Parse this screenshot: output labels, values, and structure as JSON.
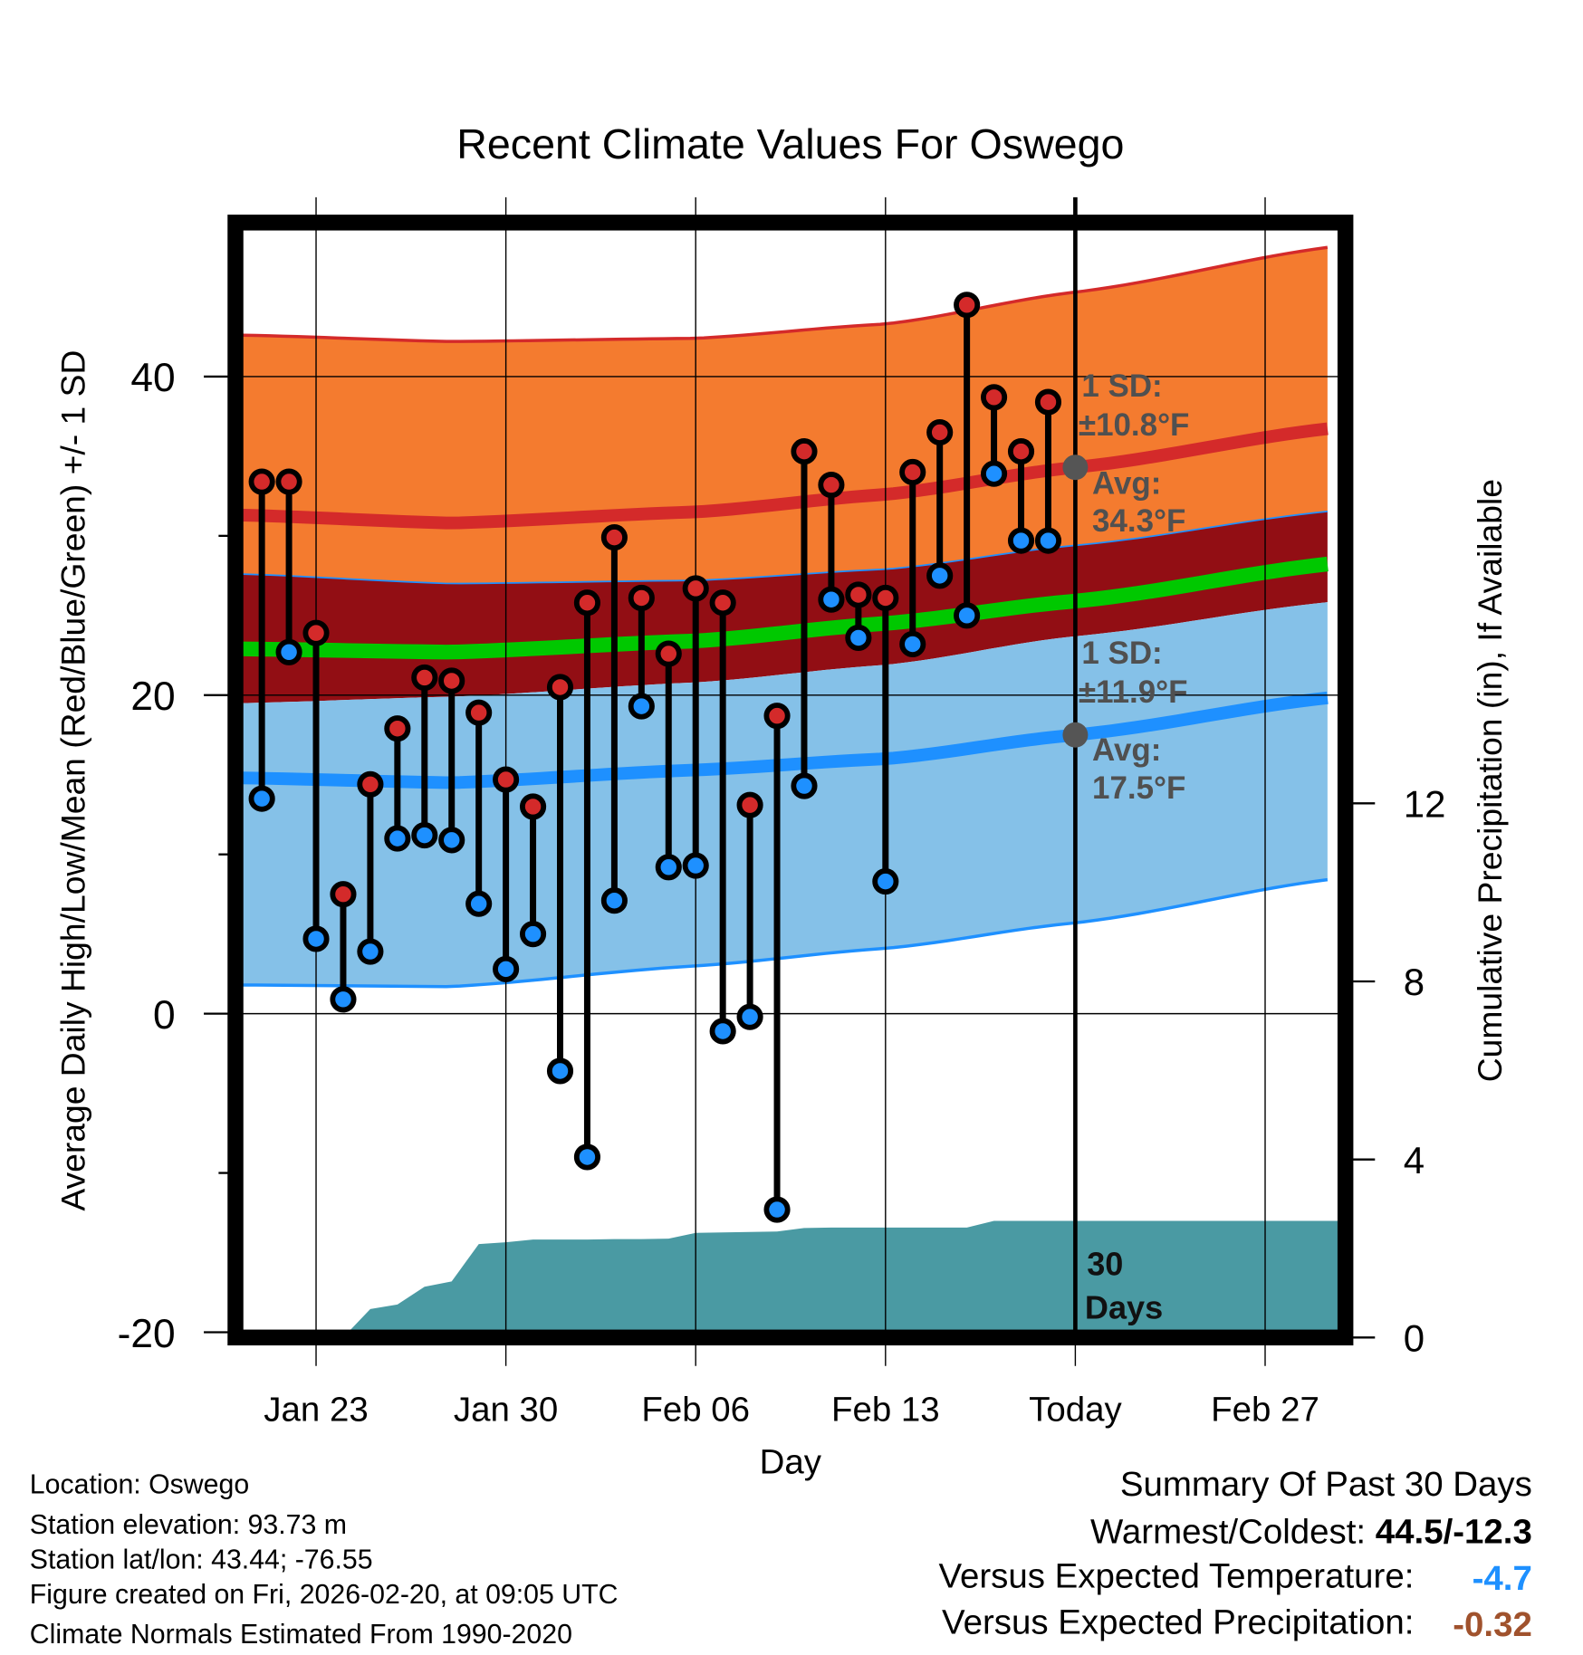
{
  "chart_data": {
    "type": "line",
    "title": "Recent Climate Values For Oswego",
    "xlabel": "Day",
    "ylabel": "Average Daily High/Low/Mean (Red/Blue/Green) +/- 1 SD",
    "ylabel_right": "Cumulative Precipitation (in), If Available",
    "ylim": [
      -20,
      50
    ],
    "ylim_right": [
      0,
      24.9
    ],
    "yticks": [
      "40",
      "20",
      "0",
      "-20"
    ],
    "yticks_right": [
      "12",
      "8",
      "4",
      "0"
    ],
    "xtick_labels": [
      "Jan 23",
      "Jan 30",
      "Feb 06",
      "Feb 13",
      "Today",
      "Feb 27"
    ],
    "xtick_days": [
      2,
      9,
      16,
      23,
      30,
      37
    ],
    "day_labels_note": "day 0 = Jan 21",
    "days": [
      0,
      1,
      2,
      3,
      4,
      5,
      6,
      7,
      8,
      9,
      10,
      11,
      12,
      13,
      14,
      15,
      16,
      17,
      18,
      19,
      20,
      21,
      22,
      23,
      24,
      25,
      26,
      27,
      28,
      29
    ],
    "series": [
      {
        "name": "High",
        "color": "#d42a2a",
        "values": [
          33.4,
          33.4,
          23.9,
          7.5,
          14.4,
          17.9,
          21.1,
          20.9,
          18.9,
          14.7,
          13.0,
          20.5,
          25.8,
          29.9,
          26.1,
          22.6,
          26.7,
          25.8,
          13.1,
          18.7,
          35.3,
          33.2,
          26.3,
          26.1,
          34.0,
          36.5,
          44.5,
          38.7,
          35.3,
          38.4
        ]
      },
      {
        "name": "Low",
        "color": "#1e90ff",
        "values": [
          13.5,
          22.7,
          4.7,
          0.9,
          3.9,
          11.0,
          11.2,
          10.9,
          6.9,
          2.8,
          5.0,
          -3.6,
          -9.0,
          7.1,
          19.3,
          9.2,
          9.3,
          -1.1,
          -0.2,
          -12.3,
          14.3,
          26.0,
          23.6,
          8.3,
          23.2,
          27.5,
          25.0,
          33.9,
          29.7,
          29.7
        ]
      },
      {
        "name": "Cumulative Precipitation",
        "color": "#4a9aa3",
        "values": [
          0,
          0,
          0,
          0,
          0.64,
          0.74,
          1.14,
          1.26,
          2.1,
          2.14,
          2.2,
          2.2,
          2.2,
          2.21,
          2.21,
          2.22,
          2.35,
          2.36,
          2.37,
          2.38,
          2.46,
          2.47,
          2.47,
          2.47,
          2.47,
          2.47,
          2.47,
          2.62,
          2.62,
          2.62
        ]
      }
    ],
    "normals": {
      "days": [
        -0.7,
        7,
        16,
        23,
        30,
        39.7
      ],
      "high_upper_sd": [
        42.6,
        42.2,
        42.4,
        43.3,
        45.3,
        48.2
      ],
      "high_mean": [
        31.3,
        30.8,
        31.5,
        32.6,
        34.3,
        36.8
      ],
      "high_lower_band": [
        27.6,
        27.0,
        27.2,
        27.9,
        29.4,
        31.6
      ],
      "mean": [
        22.9,
        22.7,
        23.4,
        24.5,
        25.9,
        28.3
      ],
      "low_upper_band": [
        19.5,
        19.9,
        20.8,
        21.9,
        23.7,
        25.9
      ],
      "low_mean": [
        14.8,
        14.5,
        15.3,
        16.0,
        17.5,
        19.9
      ],
      "low_lower_sd": [
        1.8,
        1.7,
        3.0,
        4.1,
        5.7,
        8.5
      ]
    },
    "colors": {
      "orange": "#f47b2f",
      "darkred": "#920e14",
      "green": "#00c800",
      "lightblue": "#85c1e8",
      "redline": "#d42a2a",
      "blueline": "#1e90ff",
      "precip": "#4a9aa3"
    },
    "annotations": {
      "high_sd_label": "1 SD:",
      "high_sd_value": "±10.8°F",
      "high_avg_label": "Avg:",
      "high_avg_value": "34.3°F",
      "low_sd_label": "1 SD:",
      "low_sd_value": "±11.9°F",
      "low_avg_label": "Avg:",
      "low_avg_value": "17.5°F",
      "days_num": "30",
      "days_word": "Days",
      "high_avg": 34.3,
      "low_avg": 17.5
    }
  },
  "footer": {
    "location": "Location: Oswego",
    "elevation": "Station elevation: 93.73 m",
    "latlon": "Station lat/lon: 43.44; -76.55",
    "created": "Figure created on Fri, 2026-02-20, at 09:05 UTC",
    "normals": "Climate Normals Estimated From 1990-2020"
  },
  "summary": {
    "title": "Summary Of Past 30 Days",
    "warm_cold_label": "Warmest/Coldest:",
    "warm_cold_value": "44.5/-12.3",
    "temp_label": "Versus Expected Temperature:",
    "temp_value": "-4.7",
    "temp_color": "#1e90ff",
    "precip_label": "Versus Expected Precipitation:",
    "precip_value": "-0.32",
    "precip_color": "#a0522d"
  }
}
